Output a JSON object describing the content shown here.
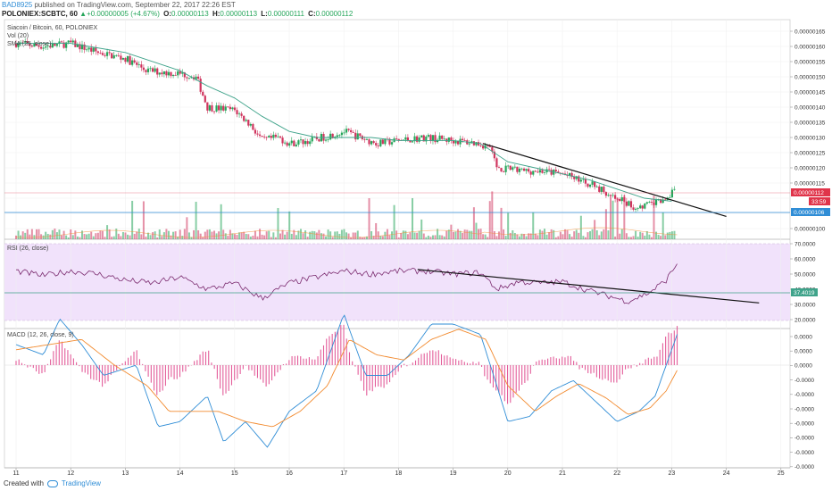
{
  "header": {
    "user": "BAD8925",
    "published": "published on TradingView.com, September 22, 2017 22:26 EST",
    "symbol": "POLONIEX:SCBTC, 60",
    "change_arrow": "▲",
    "change": "+0.00000005 (+4.67%)",
    "o_label": "O:",
    "o": "0.00000113",
    "h_label": "H:",
    "h": "0.00000113",
    "l_label": "L:",
    "l": "0.00000111",
    "c_label": "C:",
    "c": "0.00000112"
  },
  "footer": {
    "created": "Created with",
    "brand": "TradingView"
  },
  "colors": {
    "up": "#26a65b",
    "down": "#d0345e",
    "ma": "#3fa38a",
    "rsi": "#7a2a6e",
    "rsi_band": "#f1e2fb",
    "macd": "#2f8dd6",
    "signal": "#f28b30",
    "hist": "#e35d9a",
    "trend": "#111111",
    "last": "#e0344a",
    "marker": "#2f8dd6"
  },
  "chart_data": [
    {
      "type": "candlestick",
      "title": "Siacoin / Bitcoin, 60, POLONIEX",
      "legend": [
        "Vol (20)",
        "SMA (25, close)"
      ],
      "x_ticks": [
        "11",
        "12",
        "13",
        "14",
        "15",
        "16",
        "17",
        "18",
        "19",
        "20",
        "21",
        "22",
        "23",
        "24",
        "25"
      ],
      "y_ticks": [
        "0.00000165",
        "0.00000160",
        "0.00000155",
        "0.00000150",
        "0.00000145",
        "0.00000140",
        "0.00000135",
        "0.00000130",
        "0.00000125",
        "0.00000120",
        "0.00000115",
        "0.00000112",
        "0.00000106",
        "0.00000100"
      ],
      "ylim": [
        9.8e-07,
        1.68e-06
      ],
      "price_path": [
        [
          11.0,
          1.61
        ],
        [
          11.5,
          1.6
        ],
        [
          12.0,
          1.61
        ],
        [
          12.5,
          1.58
        ],
        [
          13.0,
          1.56
        ],
        [
          13.4,
          1.52
        ],
        [
          14.0,
          1.51
        ],
        [
          14.3,
          1.5
        ],
        [
          14.5,
          1.4
        ],
        [
          15.0,
          1.39
        ],
        [
          15.3,
          1.34
        ],
        [
          15.5,
          1.29
        ],
        [
          15.8,
          1.3
        ],
        [
          16.0,
          1.28
        ],
        [
          16.4,
          1.29
        ],
        [
          16.6,
          1.3
        ],
        [
          17.0,
          1.32
        ],
        [
          17.3,
          1.3
        ],
        [
          17.6,
          1.28
        ],
        [
          18.0,
          1.29
        ],
        [
          18.5,
          1.3
        ],
        [
          19.0,
          1.29
        ],
        [
          19.5,
          1.28
        ],
        [
          19.7,
          1.26
        ],
        [
          19.8,
          1.2
        ],
        [
          20.2,
          1.19
        ],
        [
          20.6,
          1.19
        ],
        [
          21.0,
          1.18
        ],
        [
          21.3,
          1.16
        ],
        [
          21.6,
          1.14
        ],
        [
          22.0,
          1.1
        ],
        [
          22.3,
          1.07
        ],
        [
          22.6,
          1.08
        ],
        [
          22.8,
          1.09
        ],
        [
          23.0,
          1.12
        ]
      ],
      "sma_path": [
        [
          11.0,
          1.61
        ],
        [
          12.0,
          1.61
        ],
        [
          13.0,
          1.58
        ],
        [
          14.0,
          1.52
        ],
        [
          14.5,
          1.47
        ],
        [
          15.0,
          1.43
        ],
        [
          15.5,
          1.37
        ],
        [
          16.0,
          1.32
        ],
        [
          16.5,
          1.3
        ],
        [
          17.0,
          1.3
        ],
        [
          17.5,
          1.3
        ],
        [
          18.0,
          1.29
        ],
        [
          18.5,
          1.29
        ],
        [
          19.0,
          1.29
        ],
        [
          19.5,
          1.28
        ],
        [
          20.0,
          1.22
        ],
        [
          20.5,
          1.2
        ],
        [
          21.0,
          1.18
        ],
        [
          21.5,
          1.16
        ],
        [
          22.0,
          1.13
        ],
        [
          22.5,
          1.1
        ],
        [
          23.0,
          1.09
        ]
      ],
      "trendline": [
        [
          19.55,
          1.28
        ],
        [
          24.0,
          1.04
        ]
      ],
      "last_price": "0.00000112",
      "last_timer": "33:59",
      "marker_value": "0.00000106"
    },
    {
      "type": "line",
      "title": "RSI (26, close)",
      "y_ticks": [
        "70.0000",
        "60.0000",
        "50.0000",
        "40.0000",
        "37.4019",
        "30.0000",
        "20.0000"
      ],
      "ylim": [
        20,
        70
      ],
      "band": [
        30,
        70
      ],
      "rsi_path": [
        [
          11.0,
          52
        ],
        [
          11.5,
          49
        ],
        [
          12.0,
          52
        ],
        [
          12.5,
          50
        ],
        [
          13.0,
          46
        ],
        [
          13.5,
          44
        ],
        [
          14.0,
          48
        ],
        [
          14.5,
          40
        ],
        [
          15.0,
          44
        ],
        [
          15.5,
          34
        ],
        [
          16.0,
          44
        ],
        [
          16.5,
          48
        ],
        [
          17.0,
          52
        ],
        [
          17.5,
          50
        ],
        [
          18.0,
          52
        ],
        [
          18.5,
          52
        ],
        [
          19.0,
          50
        ],
        [
          19.5,
          51
        ],
        [
          19.8,
          40
        ],
        [
          20.2,
          45
        ],
        [
          20.6,
          44
        ],
        [
          21.0,
          45
        ],
        [
          21.4,
          40
        ],
        [
          21.8,
          36
        ],
        [
          22.2,
          32
        ],
        [
          22.6,
          38
        ],
        [
          22.9,
          46
        ],
        [
          23.1,
          57
        ]
      ],
      "trendline": [
        [
          18.35,
          53
        ],
        [
          24.6,
          31
        ]
      ],
      "marker_value": "37.4019"
    },
    {
      "type": "macd",
      "title": "MACD (12, 26, close, 9)",
      "y_ticks": [
        "0.0000",
        "0.0000",
        "0.0000",
        "-0.0000",
        "-0.0000",
        "-0.0000",
        "-0.0000",
        "-0.0000",
        "-0.0000",
        "-0.0000"
      ],
      "ylim": [
        -1.0,
        1.0
      ],
      "macd_path": [
        [
          11.0,
          0.2
        ],
        [
          11.5,
          0.1
        ],
        [
          11.8,
          0.45
        ],
        [
          12.2,
          0.2
        ],
        [
          12.6,
          -0.1
        ],
        [
          13.2,
          0.0
        ],
        [
          13.6,
          -0.6
        ],
        [
          14.0,
          -0.55
        ],
        [
          14.5,
          -0.3
        ],
        [
          14.8,
          -0.75
        ],
        [
          15.2,
          -0.55
        ],
        [
          15.6,
          -0.8
        ],
        [
          16.0,
          -0.45
        ],
        [
          16.5,
          -0.25
        ],
        [
          17.0,
          0.5
        ],
        [
          17.4,
          -0.1
        ],
        [
          17.8,
          -0.1
        ],
        [
          18.2,
          0.1
        ],
        [
          18.6,
          0.4
        ],
        [
          19.0,
          0.4
        ],
        [
          19.5,
          0.3
        ],
        [
          19.8,
          -0.2
        ],
        [
          20.0,
          -0.55
        ],
        [
          20.4,
          -0.5
        ],
        [
          20.8,
          -0.25
        ],
        [
          21.2,
          -0.15
        ],
        [
          21.6,
          -0.35
        ],
        [
          22.0,
          -0.55
        ],
        [
          22.4,
          -0.45
        ],
        [
          22.7,
          -0.3
        ],
        [
          23.1,
          0.3
        ]
      ],
      "signal_path": [
        [
          11.0,
          0.15
        ],
        [
          11.6,
          0.2
        ],
        [
          12.2,
          0.25
        ],
        [
          12.8,
          0.0
        ],
        [
          13.4,
          -0.2
        ],
        [
          13.8,
          -0.45
        ],
        [
          14.2,
          -0.45
        ],
        [
          14.7,
          -0.45
        ],
        [
          15.2,
          -0.55
        ],
        [
          15.7,
          -0.6
        ],
        [
          16.2,
          -0.45
        ],
        [
          16.7,
          -0.2
        ],
        [
          17.1,
          0.25
        ],
        [
          17.6,
          0.1
        ],
        [
          18.1,
          0.05
        ],
        [
          18.6,
          0.25
        ],
        [
          19.1,
          0.35
        ],
        [
          19.6,
          0.25
        ],
        [
          20.0,
          -0.2
        ],
        [
          20.5,
          -0.45
        ],
        [
          20.9,
          -0.3
        ],
        [
          21.3,
          -0.18
        ],
        [
          21.8,
          -0.32
        ],
        [
          22.2,
          -0.48
        ],
        [
          22.6,
          -0.42
        ],
        [
          22.9,
          -0.25
        ],
        [
          23.1,
          -0.05
        ]
      ]
    }
  ]
}
